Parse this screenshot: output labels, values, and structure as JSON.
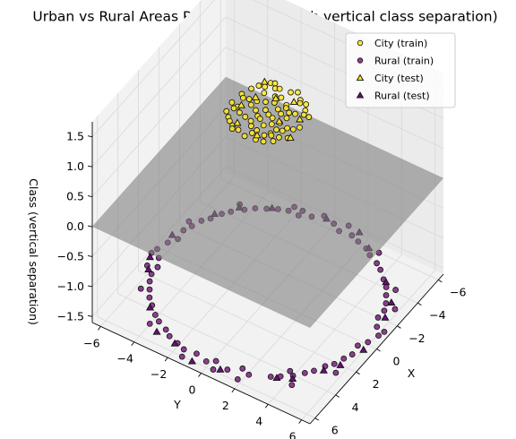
{
  "chart_data": {
    "type": "scatter3d",
    "title": "Urban vs Rural Areas Population (3D with vertical class separation)",
    "xlabel": "X",
    "ylabel": "Y",
    "zlabel": "Class (vertical separation)",
    "xlim": [
      -6.5,
      6.5
    ],
    "ylim": [
      -6.5,
      6.5
    ],
    "zlim": [
      -1.6,
      1.75
    ],
    "x_ticks": [
      -6,
      -4,
      -2,
      0,
      2,
      4,
      6
    ],
    "y_ticks": [
      -6,
      -4,
      -2,
      0,
      2,
      4,
      6
    ],
    "z_ticks": [
      -1.5,
      -1.0,
      -0.5,
      0.0,
      0.5,
      1.0,
      1.5
    ],
    "x_tick_labels": [
      "−6",
      "−4",
      "−2",
      "0",
      "2",
      "4",
      "6"
    ],
    "y_tick_labels": [
      "−6",
      "−4",
      "−2",
      "0",
      "2",
      "4",
      "6"
    ],
    "z_tick_labels": [
      "−1.5",
      "−1.0",
      "−0.5",
      "0.0",
      "0.5",
      "1.0",
      "1.5"
    ],
    "grid": true,
    "legend_position": "top-right",
    "plane": {
      "z": 0.0,
      "color": "#808080",
      "opacity": 0.6
    },
    "series": [
      {
        "name": "City (train)",
        "marker": "circle",
        "color": "#fde725",
        "z": 1.5,
        "points": [
          [
            0.5,
            -0.3
          ],
          [
            -0.8,
            0.6
          ],
          [
            1.2,
            0.9
          ],
          [
            -1.5,
            -1.1
          ],
          [
            0.3,
            1.7
          ],
          [
            -0.4,
            -1.8
          ],
          [
            1.9,
            -0.6
          ],
          [
            -1.9,
            0.2
          ],
          [
            1.4,
            -1.5
          ],
          [
            -1.2,
            1.5
          ],
          [
            0.1,
            0.1
          ],
          [
            2.0,
            0.5
          ],
          [
            -0.6,
            -0.5
          ],
          [
            0.8,
            -1.2
          ],
          [
            -1.7,
            0.9
          ],
          [
            1.6,
            1.3
          ],
          [
            -0.2,
            1.0
          ],
          [
            0.9,
            0.3
          ],
          [
            -1.0,
            -1.6
          ],
          [
            0.4,
            -1.9
          ],
          [
            1.8,
            -1.0
          ],
          [
            -1.8,
            -0.4
          ],
          [
            0.0,
            -1.0
          ],
          [
            -0.9,
            1.9
          ],
          [
            1.0,
            1.8
          ],
          [
            -2.0,
            -0.8
          ],
          [
            2.1,
            -0.1
          ],
          [
            0.6,
            0.6
          ],
          [
            -0.5,
            0.3
          ],
          [
            1.3,
            -0.2
          ],
          [
            -1.3,
            0.0
          ],
          [
            0.2,
            -0.6
          ],
          [
            -0.3,
            -1.3
          ],
          [
            1.1,
            -1.8
          ],
          [
            -1.6,
            1.3
          ],
          [
            1.7,
            0.1
          ],
          [
            -0.7,
            1.2
          ],
          [
            0.7,
            1.3
          ],
          [
            -1.1,
            -0.9
          ],
          [
            0.5,
            -1.5
          ],
          [
            1.5,
            0.7
          ],
          [
            -1.4,
            -1.4
          ],
          [
            0.3,
            0.9
          ],
          [
            -0.1,
            -0.2
          ],
          [
            2.0,
            -0.9
          ],
          [
            -2.1,
            0.5
          ],
          [
            0.9,
            -0.8
          ],
          [
            -0.8,
            -0.1
          ],
          [
            1.2,
            1.4
          ],
          [
            -1.5,
            1.0
          ],
          [
            0.0,
            1.9
          ],
          [
            0.6,
            -0.1
          ],
          [
            -0.6,
            0.9
          ],
          [
            1.4,
            0.2
          ],
          [
            -1.2,
            -0.3
          ],
          [
            0.8,
            1.0
          ],
          [
            -0.4,
            -0.9
          ],
          [
            1.6,
            -1.3
          ],
          [
            -1.9,
            -1.0
          ],
          [
            0.2,
            0.4
          ],
          [
            1.0,
            -0.4
          ],
          [
            -1.0,
            0.5
          ],
          [
            0.4,
            1.4
          ],
          [
            -0.2,
            -1.6
          ],
          [
            1.9,
            0.9
          ],
          [
            -1.7,
            -0.6
          ],
          [
            0.7,
            -1.6
          ],
          [
            -0.9,
            1.6
          ],
          [
            1.3,
            1.0
          ],
          [
            -0.3,
            0.6
          ]
        ]
      },
      {
        "name": "Rural (train)",
        "marker": "circle",
        "color": "#7a1e7d",
        "z": -1.5,
        "points": [
          [
            6.0,
            0.0
          ],
          [
            5.9,
            1.2
          ],
          [
            5.6,
            2.3
          ],
          [
            5.1,
            3.3
          ],
          [
            4.4,
            4.2
          ],
          [
            3.5,
            4.9
          ],
          [
            2.5,
            5.5
          ],
          [
            1.4,
            5.9
          ],
          [
            0.2,
            6.1
          ],
          [
            -1.0,
            5.9
          ],
          [
            -2.2,
            5.6
          ],
          [
            -3.2,
            5.1
          ],
          [
            -4.1,
            4.4
          ],
          [
            -4.9,
            3.5
          ],
          [
            -5.5,
            2.5
          ],
          [
            -5.9,
            1.4
          ],
          [
            -6.1,
            0.2
          ],
          [
            -5.9,
            -1.0
          ],
          [
            -5.6,
            -2.2
          ],
          [
            -5.1,
            -3.2
          ],
          [
            -4.4,
            -4.1
          ],
          [
            -3.5,
            -4.9
          ],
          [
            -2.5,
            -5.5
          ],
          [
            -1.4,
            -5.9
          ],
          [
            -0.2,
            -6.1
          ],
          [
            1.0,
            -5.9
          ],
          [
            2.2,
            -5.6
          ],
          [
            3.2,
            -5.1
          ],
          [
            4.1,
            -4.4
          ],
          [
            4.9,
            -3.5
          ],
          [
            5.5,
            -2.5
          ],
          [
            5.9,
            -1.4
          ],
          [
            6.3,
            0.6
          ],
          [
            5.4,
            1.8
          ],
          [
            4.8,
            3.7
          ],
          [
            3.9,
            4.6
          ],
          [
            2.9,
            5.2
          ],
          [
            1.9,
            5.7
          ],
          [
            0.7,
            5.8
          ],
          [
            -0.5,
            6.3
          ],
          [
            -1.6,
            5.6
          ],
          [
            -2.7,
            5.4
          ],
          [
            -3.7,
            4.8
          ],
          [
            -4.6,
            3.9
          ],
          [
            -5.2,
            2.9
          ],
          [
            -5.7,
            1.9
          ],
          [
            -5.8,
            0.7
          ],
          [
            -6.3,
            -0.5
          ],
          [
            -5.6,
            -1.6
          ],
          [
            -5.4,
            -2.7
          ],
          [
            -4.8,
            -3.7
          ],
          [
            -3.9,
            -4.6
          ],
          [
            -2.9,
            -5.2
          ],
          [
            -1.9,
            -5.7
          ],
          [
            -0.7,
            -5.8
          ],
          [
            0.5,
            -6.3
          ],
          [
            1.6,
            -5.6
          ],
          [
            2.7,
            -5.4
          ],
          [
            3.7,
            -4.8
          ],
          [
            4.6,
            -3.9
          ],
          [
            5.2,
            -2.9
          ],
          [
            5.7,
            -1.9
          ],
          [
            5.8,
            -0.7
          ],
          [
            6.2,
            2.0
          ],
          [
            5.0,
            4.5
          ],
          [
            3.0,
            5.9
          ],
          [
            -0.9,
            6.4
          ],
          [
            -3.8,
            5.3
          ],
          [
            -5.6,
            3.2
          ],
          [
            -6.4,
            0.9
          ],
          [
            -6.0,
            -2.1
          ],
          [
            -4.6,
            -4.5
          ],
          [
            -2.1,
            -6.0
          ],
          [
            0.9,
            -6.4
          ],
          [
            3.4,
            -5.5
          ],
          [
            5.3,
            -3.8
          ],
          [
            6.4,
            -1.2
          ],
          [
            5.7,
            0.4
          ],
          [
            4.2,
            3.9
          ],
          [
            -2.6,
            6.0
          ],
          [
            -6.0,
            -1.6
          ],
          [
            1.8,
            -6.1
          ]
        ]
      },
      {
        "name": "City (test)",
        "marker": "triangle",
        "color": "#fde725",
        "z": 1.5,
        "points": [
          [
            0.2,
            0.8
          ],
          [
            -1.1,
            -0.2
          ],
          [
            1.5,
            -0.9
          ],
          [
            -0.5,
            1.6
          ],
          [
            0.9,
            1.9
          ],
          [
            -1.8,
            -1.3
          ],
          [
            1.7,
            0.4
          ],
          [
            -0.6,
            -1.1
          ],
          [
            0.3,
            -1.4
          ],
          [
            -1.4,
            0.7
          ]
        ]
      },
      {
        "name": "Rural (test)",
        "marker": "triangle",
        "color": "#6a0d7a",
        "z": -1.5,
        "points": [
          [
            6.1,
            0.9
          ],
          [
            5.0,
            3.6
          ],
          [
            3.2,
            5.3
          ],
          [
            0.8,
            6.2
          ],
          [
            -1.8,
            5.9
          ],
          [
            -4.0,
            4.6
          ],
          [
            -5.6,
            2.6
          ],
          [
            -6.2,
            -0.3
          ],
          [
            -5.3,
            -3.0
          ],
          [
            -3.3,
            -5.2
          ],
          [
            -0.8,
            -6.2
          ],
          [
            2.0,
            -5.9
          ],
          [
            4.3,
            -4.4
          ],
          [
            5.8,
            -2.0
          ],
          [
            6.4,
            -0.6
          ],
          [
            4.6,
            4.3
          ],
          [
            -2.9,
            5.6
          ],
          [
            -6.3,
            1.6
          ],
          [
            -4.4,
            -4.4
          ],
          [
            1.2,
            -6.3
          ],
          [
            5.6,
            -3.2
          ],
          [
            2.4,
            5.8
          ]
        ]
      }
    ]
  }
}
